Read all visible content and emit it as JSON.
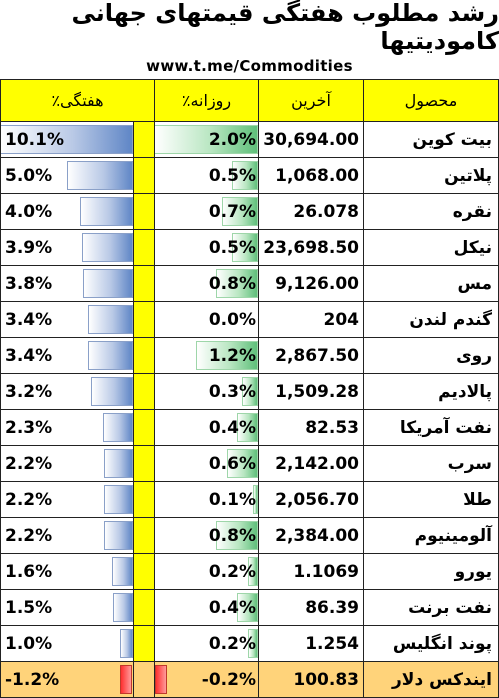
{
  "title": "رشد مطلوب هفتگی قیمتهای جهانی کامودیتیها",
  "link": "www.t.me/Commodities",
  "headers": {
    "weekly": "هفتگی٪",
    "daily": "روزانه٪",
    "last": "آخرین",
    "product": "محصول"
  },
  "accent_colors": {
    "header": "#ffff00",
    "weekly_bar": "#5f86c6",
    "daily_bar": "#5fbf7a",
    "negative_bar": "#ff3030",
    "last_row": "#ffd37a"
  },
  "rows": [
    {
      "name": "بیت کوین",
      "price": "30,694.00",
      "daily": "2.0%",
      "daily_value": 2.0,
      "weekly": "10.1%",
      "weekly_value": 10.1
    },
    {
      "name": "پلاتین",
      "price": "1,068.00",
      "daily": "0.5%",
      "daily_value": 0.5,
      "weekly": "5.0%",
      "weekly_value": 5.0
    },
    {
      "name": "نقره",
      "price": "26.078",
      "daily": "0.7%",
      "daily_value": 0.7,
      "weekly": "4.0%",
      "weekly_value": 4.0
    },
    {
      "name": "نیکل",
      "price": "23,698.50",
      "daily": "0.5%",
      "daily_value": 0.5,
      "weekly": "3.9%",
      "weekly_value": 3.9
    },
    {
      "name": "مس",
      "price": "9,126.00",
      "daily": "0.8%",
      "daily_value": 0.8,
      "weekly": "3.8%",
      "weekly_value": 3.8
    },
    {
      "name": "گندم لندن",
      "price": "204",
      "daily": "0.0%",
      "daily_value": 0.0,
      "weekly": "3.4%",
      "weekly_value": 3.4
    },
    {
      "name": "روی",
      "price": "2,867.50",
      "daily": "1.2%",
      "daily_value": 1.2,
      "weekly": "3.4%",
      "weekly_value": 3.4
    },
    {
      "name": "پالادیم",
      "price": "1,509.28",
      "daily": "0.3%",
      "daily_value": 0.3,
      "weekly": "3.2%",
      "weekly_value": 3.2
    },
    {
      "name": "نفت آمریکا",
      "price": "82.53",
      "daily": "0.4%",
      "daily_value": 0.4,
      "weekly": "2.3%",
      "weekly_value": 2.3
    },
    {
      "name": "سرب",
      "price": "2,142.00",
      "daily": "0.6%",
      "daily_value": 0.6,
      "weekly": "2.2%",
      "weekly_value": 2.2
    },
    {
      "name": "طلا",
      "price": "2,056.70",
      "daily": "0.1%",
      "daily_value": 0.1,
      "weekly": "2.2%",
      "weekly_value": 2.2
    },
    {
      "name": "آلومینیوم",
      "price": "2,384.00",
      "daily": "0.8%",
      "daily_value": 0.8,
      "weekly": "2.2%",
      "weekly_value": 2.2
    },
    {
      "name": "یورو",
      "price": "1.1069",
      "daily": "0.2%",
      "daily_value": 0.2,
      "weekly": "1.6%",
      "weekly_value": 1.6
    },
    {
      "name": "نفت برنت",
      "price": "86.39",
      "daily": "0.4%",
      "daily_value": 0.4,
      "weekly": "1.5%",
      "weekly_value": 1.5
    },
    {
      "name": "پوند انگلیس",
      "price": "1.254",
      "daily": "0.2%",
      "daily_value": 0.2,
      "weekly": "1.0%",
      "weekly_value": 1.0
    },
    {
      "name": "ایندکس دلار",
      "price": "100.83",
      "daily": "-0.2%",
      "daily_value": -0.2,
      "weekly": "-1.2%",
      "weekly_value": -1.2
    }
  ]
}
